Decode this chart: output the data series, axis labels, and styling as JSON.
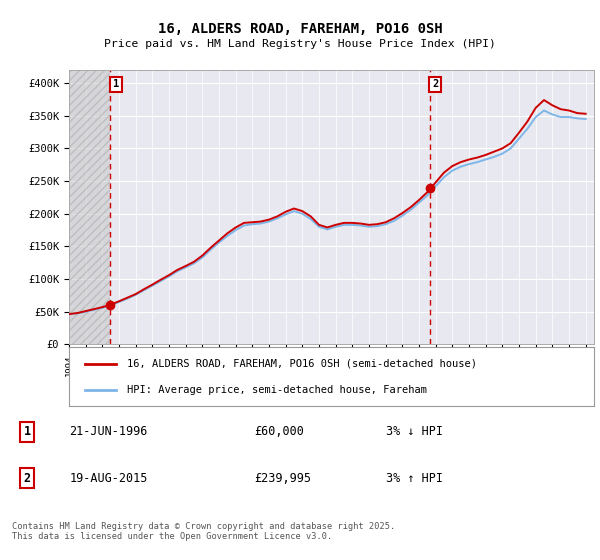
{
  "title": "16, ALDERS ROAD, FAREHAM, PO16 0SH",
  "subtitle": "Price paid vs. HM Land Registry's House Price Index (HPI)",
  "legend_line1": "16, ALDERS ROAD, FAREHAM, PO16 0SH (semi-detached house)",
  "legend_line2": "HPI: Average price, semi-detached house, Fareham",
  "footnote": "Contains HM Land Registry data © Crown copyright and database right 2025.\nThis data is licensed under the Open Government Licence v3.0.",
  "marker1_label": "1",
  "marker1_date": "21-JUN-1996",
  "marker1_price": "£60,000",
  "marker1_hpi": "3% ↓ HPI",
  "marker2_label": "2",
  "marker2_date": "19-AUG-2015",
  "marker2_price": "£239,995",
  "marker2_hpi": "3% ↑ HPI",
  "hpi_color": "#7EB6E8",
  "price_color": "#CC0000",
  "marker_color": "#CC0000",
  "dashed_line_color": "#CC0000",
  "background_color": "#FFFFFF",
  "plot_bg_color": "#E8E8F0",
  "ylim_min": 0,
  "ylim_max": 420000,
  "year_start": 1994,
  "year_end": 2025,
  "marker1_year": 1996.47,
  "marker2_year": 2015.63,
  "hpi_years": [
    1994,
    1994.5,
    1995,
    1995.5,
    1996,
    1996.5,
    1997,
    1997.5,
    1998,
    1998.5,
    1999,
    1999.5,
    2000,
    2000.5,
    2001,
    2001.5,
    2002,
    2002.5,
    2003,
    2003.5,
    2004,
    2004.5,
    2005,
    2005.5,
    2006,
    2006.5,
    2007,
    2007.5,
    2008,
    2008.5,
    2009,
    2009.5,
    2010,
    2010.5,
    2011,
    2011.5,
    2012,
    2012.5,
    2013,
    2013.5,
    2014,
    2014.5,
    2015,
    2015.5,
    2016,
    2016.5,
    2017,
    2017.5,
    2018,
    2018.5,
    2019,
    2019.5,
    2020,
    2020.5,
    2021,
    2021.5,
    2022,
    2022.5,
    2023,
    2023.5,
    2024,
    2024.5,
    2025
  ],
  "hpi_values": [
    46000,
    47500,
    50000,
    53000,
    56000,
    60000,
    65000,
    70000,
    76000,
    83000,
    90000,
    97000,
    104000,
    112000,
    118000,
    124000,
    133000,
    145000,
    156000,
    166000,
    175000,
    182000,
    184000,
    185000,
    188000,
    193000,
    199000,
    204000,
    200000,
    192000,
    180000,
    176000,
    180000,
    183000,
    183000,
    182000,
    180000,
    181000,
    184000,
    189000,
    197000,
    206000,
    217000,
    228000,
    242000,
    256000,
    266000,
    272000,
    276000,
    279000,
    283000,
    287000,
    292000,
    300000,
    315000,
    330000,
    348000,
    358000,
    352000,
    348000,
    348000,
    346000,
    345000
  ],
  "price_years": [
    1994,
    1994.5,
    1995,
    1995.5,
    1996,
    1996.5,
    1997,
    1997.5,
    1998,
    1998.5,
    1999,
    1999.5,
    2000,
    2000.5,
    2001,
    2001.5,
    2002,
    2002.5,
    2003,
    2003.5,
    2004,
    2004.5,
    2005,
    2005.5,
    2006,
    2006.5,
    2007,
    2007.5,
    2008,
    2008.5,
    2009,
    2009.5,
    2010,
    2010.5,
    2011,
    2011.5,
    2012,
    2012.5,
    2013,
    2013.5,
    2014,
    2014.5,
    2015,
    2015.5,
    2016,
    2016.5,
    2017,
    2017.5,
    2018,
    2018.5,
    2019,
    2019.5,
    2020,
    2020.5,
    2021,
    2021.5,
    2022,
    2022.5,
    2023,
    2023.5,
    2024,
    2024.5,
    2025
  ],
  "price_values": [
    46500,
    48000,
    51000,
    54000,
    57000,
    61000,
    66000,
    71500,
    77000,
    84500,
    91500,
    99000,
    106000,
    114000,
    120000,
    126500,
    136000,
    148000,
    159000,
    170000,
    179000,
    186000,
    187000,
    188000,
    191000,
    196000,
    203000,
    208000,
    204000,
    196000,
    183000,
    179000,
    183000,
    186000,
    186000,
    185000,
    183000,
    184000,
    187000,
    193000,
    201000,
    210000,
    221000,
    233000,
    248000,
    263000,
    273000,
    279000,
    283000,
    286000,
    290000,
    295000,
    300000,
    308000,
    324000,
    341000,
    362000,
    374000,
    366000,
    360000,
    358000,
    354000,
    353000
  ]
}
